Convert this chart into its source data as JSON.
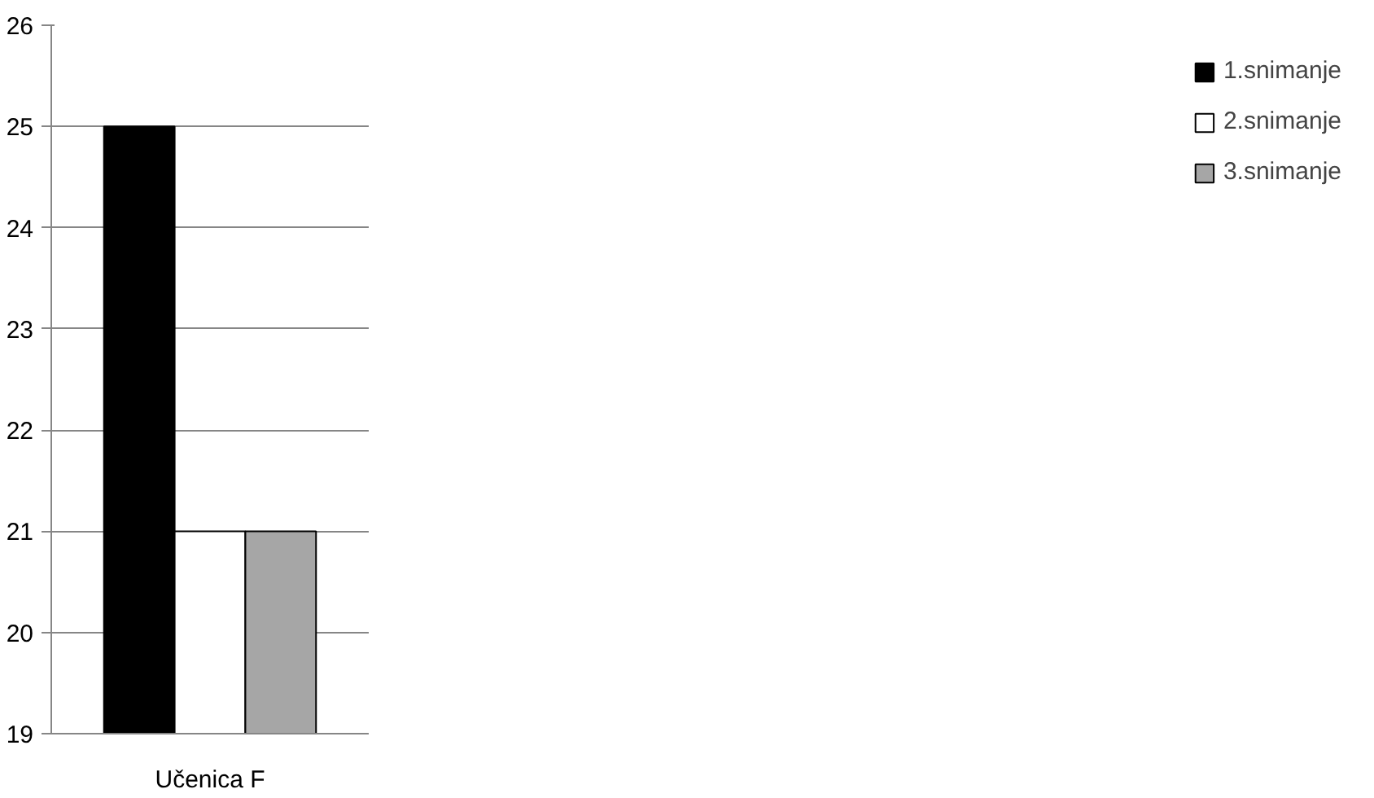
{
  "chart_data": {
    "type": "bar",
    "categories": [
      "Učenica F"
    ],
    "series": [
      {
        "name": "1.snimanje",
        "color": "#000000",
        "values": [
          25
        ]
      },
      {
        "name": "2.snimanje",
        "color": "#ffffff",
        "values": [
          21
        ]
      },
      {
        "name": "3.snimanje",
        "color": "#a6a6a6",
        "values": [
          21
        ]
      }
    ],
    "ylim": [
      19,
      26
    ],
    "yticks": [
      19,
      20,
      21,
      22,
      23,
      24,
      25,
      26
    ],
    "grid": "y",
    "legend": "right"
  }
}
